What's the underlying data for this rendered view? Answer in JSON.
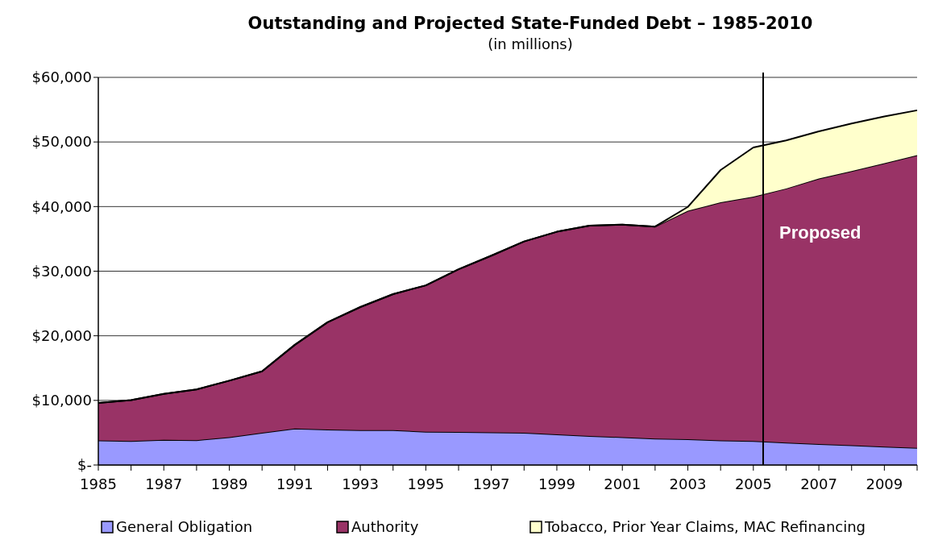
{
  "chart_data": {
    "type": "area",
    "title": "Outstanding and Projected State-Funded Debt – 1985-2010",
    "subtitle": "(in millions)",
    "stacked": true,
    "x": [
      1985,
      1986,
      1987,
      1988,
      1989,
      1990,
      1991,
      1992,
      1993,
      1994,
      1995,
      1996,
      1997,
      1998,
      1999,
      2000,
      2001,
      2002,
      2003,
      2004,
      2005,
      2006,
      2007,
      2008,
      2009,
      2010
    ],
    "series": [
      {
        "name": "General Obligation",
        "color": "#9999ff",
        "values": [
          3800,
          3700,
          3900,
          3850,
          4300,
          5000,
          5650,
          5500,
          5400,
          5400,
          5150,
          5100,
          5050,
          5000,
          4750,
          4500,
          4300,
          4100,
          4000,
          3800,
          3700,
          3450,
          3250,
          3050,
          2850,
          2650
        ]
      },
      {
        "name": "Authority",
        "color": "#993366",
        "values": [
          5800,
          6350,
          7100,
          7850,
          8750,
          9500,
          12950,
          16600,
          19050,
          21050,
          22650,
          25200,
          27350,
          29600,
          31350,
          32550,
          32900,
          32800,
          35350,
          36850,
          37850,
          39350,
          41100,
          42450,
          43850,
          45300
        ]
      },
      {
        "name": "Tobacco, Prior Year Claims, MAC Refinancing",
        "color": "#ffffcc",
        "values": [
          0,
          0,
          0,
          0,
          0,
          0,
          0,
          0,
          0,
          0,
          0,
          0,
          0,
          0,
          0,
          0,
          0,
          0,
          600,
          5000,
          7600,
          7450,
          7300,
          7350,
          7250,
          6950
        ]
      }
    ],
    "xlim": [
      1985,
      2010
    ],
    "xticks": [
      1985,
      {
        "value": 1986,
        "label": null
      },
      1987,
      {
        "value": 1988,
        "label": null
      },
      1989,
      {
        "value": 1990,
        "label": null
      },
      1991,
      {
        "value": 1992,
        "label": null
      },
      1993,
      {
        "value": 1994,
        "label": null
      },
      1995,
      {
        "value": 1996,
        "label": null
      },
      1997,
      {
        "value": 1998,
        "label": null
      },
      1999,
      {
        "value": 2000,
        "label": null
      },
      2001,
      {
        "value": 2002,
        "label": null
      },
      2003,
      {
        "value": 2004,
        "label": null
      },
      2005,
      {
        "value": 2006,
        "label": null
      },
      2007,
      {
        "value": 2008,
        "label": null
      },
      2009,
      {
        "value": 2010,
        "label": null
      }
    ],
    "ylim": [
      0,
      60000
    ],
    "yticks": [
      {
        "value": 0,
        "label": "$-"
      },
      {
        "value": 10000,
        "label": "$10,000"
      },
      {
        "value": 20000,
        "label": "$20,000"
      },
      {
        "value": 30000,
        "label": "$30,000"
      },
      {
        "value": 40000,
        "label": "$40,000"
      },
      {
        "value": 50000,
        "label": "$50,000"
      },
      {
        "value": 60000,
        "label": "$60,000"
      }
    ],
    "grid": "y",
    "legend": "bottom",
    "ref_lines": [
      {
        "axis": "x",
        "value": 2005.3,
        "label": "Proposed",
        "color": "#000000"
      }
    ]
  }
}
